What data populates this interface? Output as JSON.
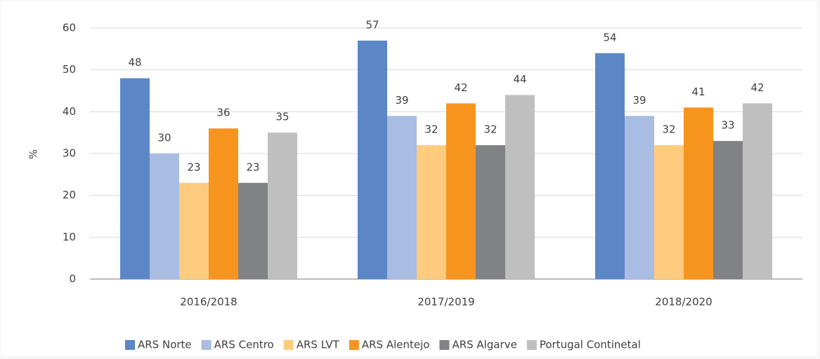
{
  "chart_data": {
    "type": "bar",
    "y_label": "%",
    "categories": [
      "2016/2018",
      "2017/2019",
      "2018/2020"
    ],
    "series": [
      {
        "name": "ARS Norte",
        "color": "#5b87c7",
        "values": [
          48,
          57,
          54
        ]
      },
      {
        "name": "ARS Centro",
        "color": "#a9bce2",
        "values": [
          30,
          39,
          39
        ]
      },
      {
        "name": "ARS LVT",
        "color": "#ffcc7f",
        "values": [
          23,
          32,
          32
        ]
      },
      {
        "name": "ARS Alentejo",
        "color": "#f7941d",
        "values": [
          36,
          42,
          41
        ]
      },
      {
        "name": "ARS Algarve",
        "color": "#808285",
        "values": [
          23,
          32,
          33
        ]
      },
      {
        "name": "Portugal Continetal",
        "color": "#bfbfbf",
        "values": [
          35,
          44,
          42
        ]
      }
    ],
    "ylim": [
      0,
      60
    ],
    "yticks": [
      0,
      10,
      20,
      30,
      40,
      50,
      60
    ],
    "grid": true,
    "legend": "bottom"
  }
}
